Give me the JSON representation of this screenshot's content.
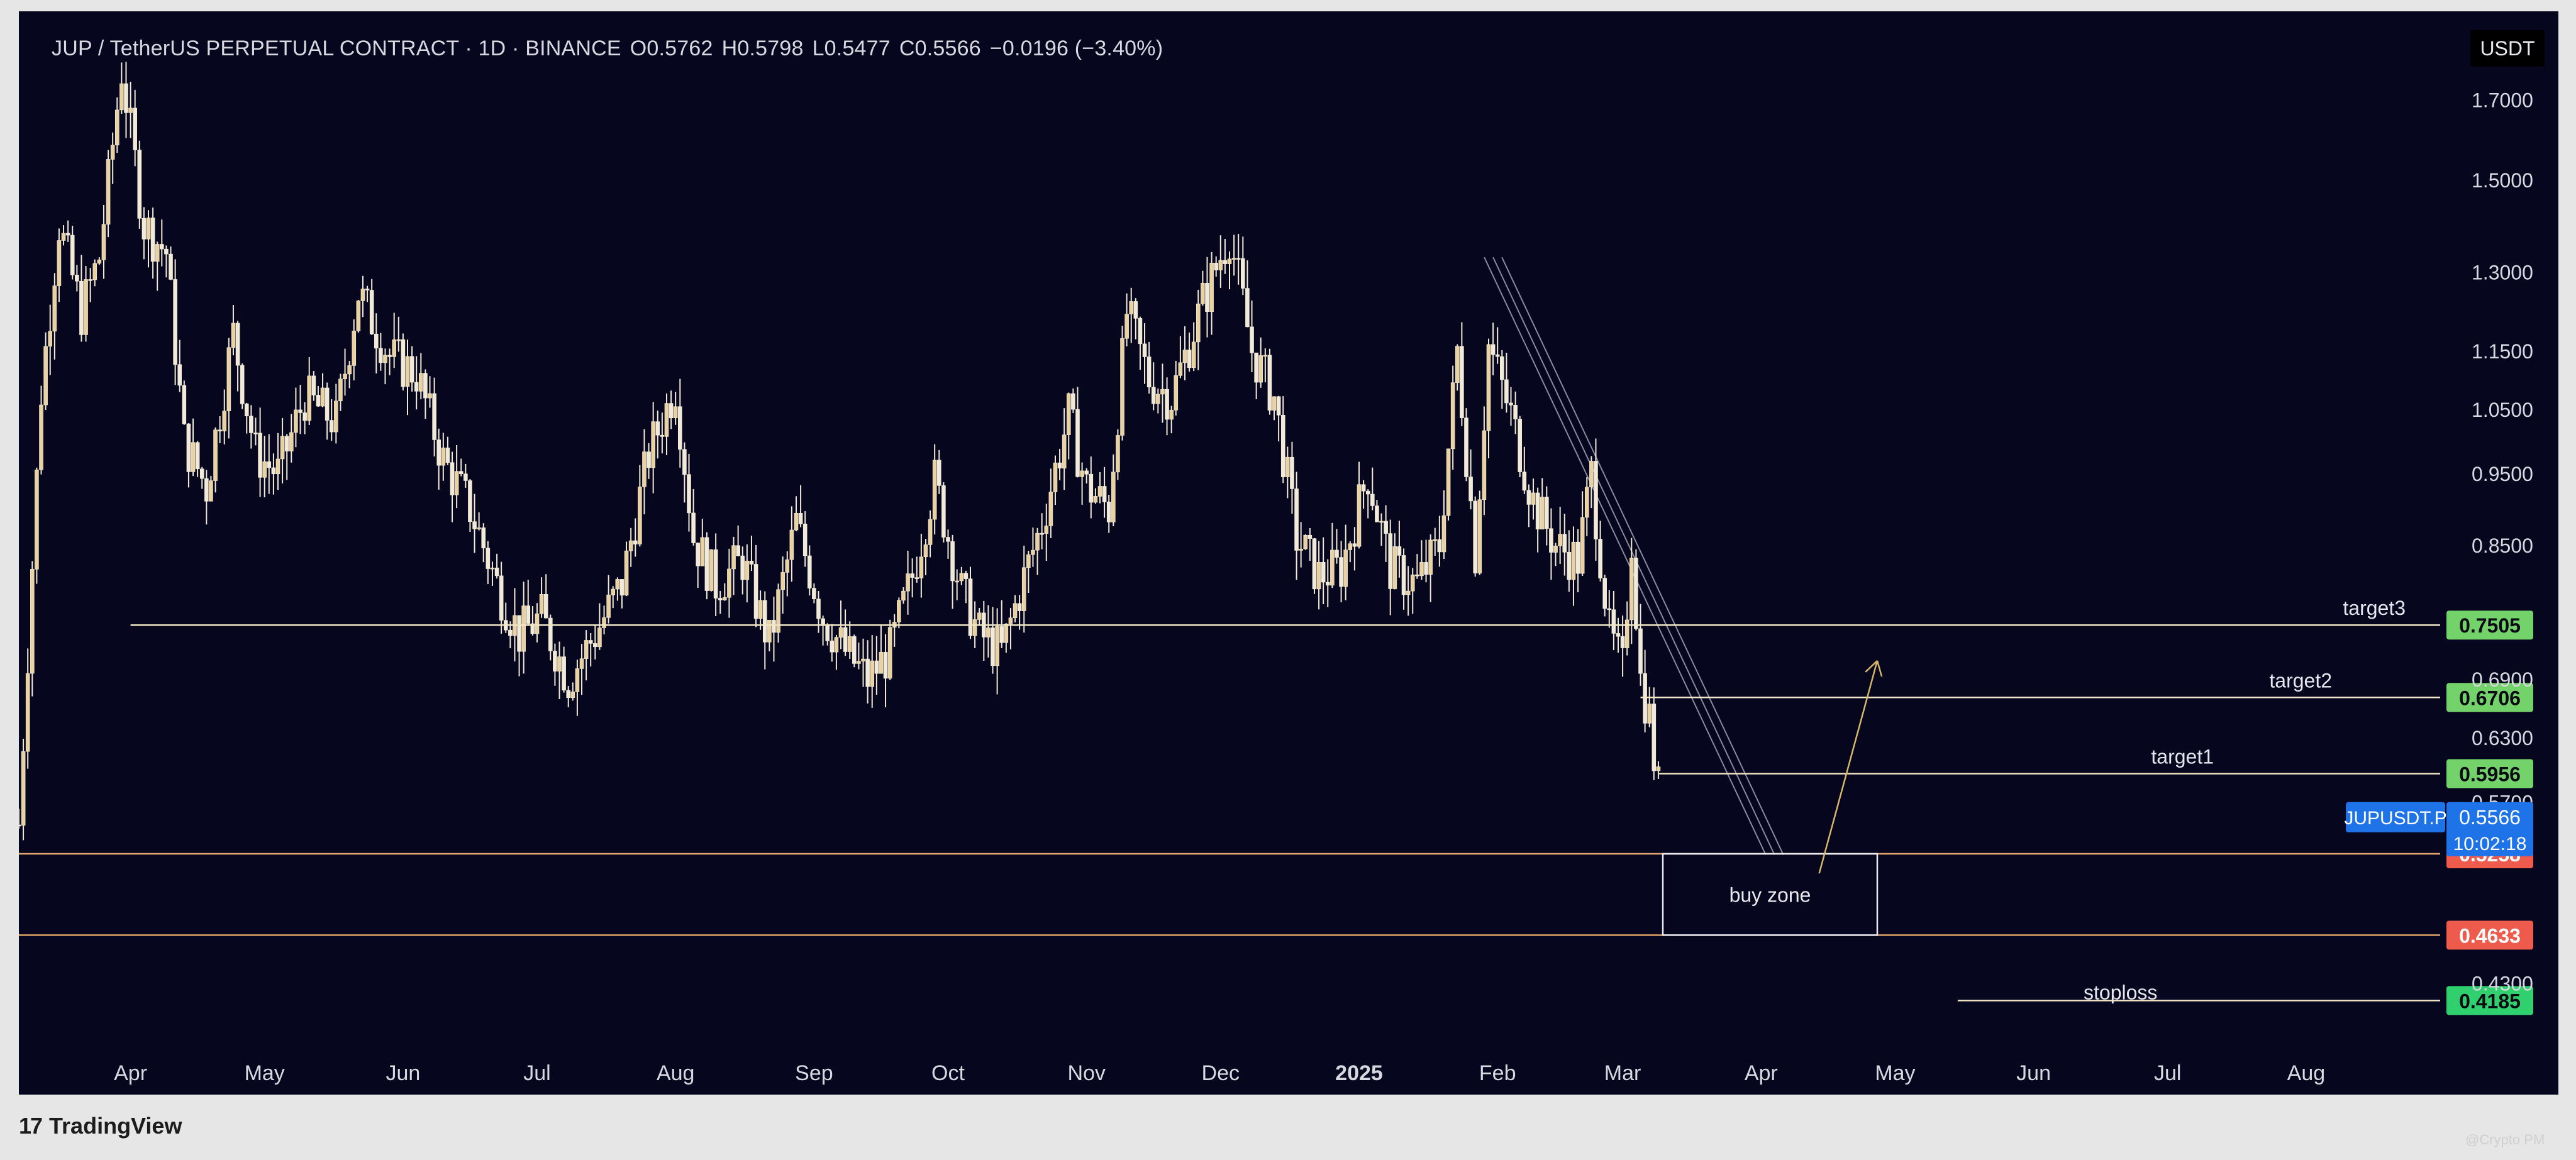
{
  "header": {
    "symbol": "JUP / TetherUS PERPETUAL CONTRACT · 1D · BINANCE",
    "open": "O0.5762",
    "high": "H0.5798",
    "low": "L0.5477",
    "close": "C0.5566",
    "change": "−0.0196 (−3.40%)"
  },
  "currency": "USDT",
  "footer": {
    "logo": "17",
    "brand": "TradingView",
    "watermark": "@Crypto PM"
  },
  "colors": {
    "background": "#06061f",
    "candle": "#e9d2a0",
    "candle_wick": "#f2ead8",
    "target_line": "#f0e6c4",
    "target_tag": "#74d26a",
    "zone_tag": "#ee5a4b",
    "stop_tag": "#2fd06d",
    "price_tag": "#1e73e8"
  },
  "chart_data": {
    "type": "candlestick",
    "title": "JUP / TetherUS PERPETUAL CONTRACT · 1D · BINANCE",
    "xlabel": "",
    "ylabel": "",
    "y_scale": "log",
    "ylim": [
      0.38,
      1.95
    ],
    "x_range": [
      "2024-03-07",
      "2025-08-31"
    ],
    "x_ticks": [
      {
        "date": "2024-04-01",
        "label": "Apr"
      },
      {
        "date": "2024-05-01",
        "label": "May"
      },
      {
        "date": "2024-06-01",
        "label": "Jun"
      },
      {
        "date": "2024-07-01",
        "label": "Jul"
      },
      {
        "date": "2024-08-01",
        "label": "Aug"
      },
      {
        "date": "2024-09-01",
        "label": "Sep"
      },
      {
        "date": "2024-10-01",
        "label": "Oct"
      },
      {
        "date": "2024-11-01",
        "label": "Nov"
      },
      {
        "date": "2024-12-01",
        "label": "Dec"
      },
      {
        "date": "2025-01-01",
        "label": "2025"
      },
      {
        "date": "2025-02-01",
        "label": "Feb"
      },
      {
        "date": "2025-03-01",
        "label": "Mar"
      },
      {
        "date": "2025-04-01",
        "label": "Apr"
      },
      {
        "date": "2025-05-01",
        "label": "May"
      },
      {
        "date": "2025-06-01",
        "label": "Jun"
      },
      {
        "date": "2025-07-01",
        "label": "Jul"
      },
      {
        "date": "2025-08-01",
        "label": "Aug"
      }
    ],
    "y_ticks": [
      "1.7000",
      "1.5000",
      "1.3000",
      "1.1500",
      "1.0500",
      "0.9500",
      "0.8500",
      "0.6900",
      "0.6300",
      "0.5700",
      "0.4300"
    ],
    "price_path": [
      {
        "date": "2024-03-07",
        "close": 0.55
      },
      {
        "date": "2024-03-12",
        "close": 1.08
      },
      {
        "date": "2024-03-16",
        "close": 1.4
      },
      {
        "date": "2024-03-21",
        "close": 1.22
      },
      {
        "date": "2024-03-25",
        "close": 1.33
      },
      {
        "date": "2024-03-30",
        "close": 1.78
      },
      {
        "date": "2024-04-04",
        "close": 1.4
      },
      {
        "date": "2024-04-09",
        "close": 1.34
      },
      {
        "date": "2024-04-13",
        "close": 1.0
      },
      {
        "date": "2024-04-18",
        "close": 0.93
      },
      {
        "date": "2024-04-24",
        "close": 1.18
      },
      {
        "date": "2024-04-29",
        "close": 0.98
      },
      {
        "date": "2024-05-04",
        "close": 0.95
      },
      {
        "date": "2024-05-10",
        "close": 1.07
      },
      {
        "date": "2024-05-17",
        "close": 1.03
      },
      {
        "date": "2024-05-22",
        "close": 1.26
      },
      {
        "date": "2024-05-29",
        "close": 1.14
      },
      {
        "date": "2024-06-04",
        "close": 1.11
      },
      {
        "date": "2024-06-10",
        "close": 0.97
      },
      {
        "date": "2024-06-16",
        "close": 0.9
      },
      {
        "date": "2024-06-22",
        "close": 0.8
      },
      {
        "date": "2024-06-27",
        "close": 0.74
      },
      {
        "date": "2024-07-02",
        "close": 0.76
      },
      {
        "date": "2024-07-08",
        "close": 0.69
      },
      {
        "date": "2024-07-14",
        "close": 0.74
      },
      {
        "date": "2024-07-20",
        "close": 0.8
      },
      {
        "date": "2024-07-26",
        "close": 0.98
      },
      {
        "date": "2024-08-01",
        "close": 1.09
      },
      {
        "date": "2024-08-05",
        "close": 0.86
      },
      {
        "date": "2024-08-10",
        "close": 0.8
      },
      {
        "date": "2024-08-16",
        "close": 0.83
      },
      {
        "date": "2024-08-22",
        "close": 0.73
      },
      {
        "date": "2024-08-28",
        "close": 0.88
      },
      {
        "date": "2024-09-03",
        "close": 0.76
      },
      {
        "date": "2024-09-08",
        "close": 0.72
      },
      {
        "date": "2024-09-13",
        "close": 0.69
      },
      {
        "date": "2024-09-18",
        "close": 0.72
      },
      {
        "date": "2024-09-23",
        "close": 0.81
      },
      {
        "date": "2024-09-28",
        "close": 0.94
      },
      {
        "date": "2024-10-04",
        "close": 0.79
      },
      {
        "date": "2024-10-08",
        "close": 0.74
      },
      {
        "date": "2024-10-13",
        "close": 0.72
      },
      {
        "date": "2024-10-17",
        "close": 0.79
      },
      {
        "date": "2024-10-22",
        "close": 0.88
      },
      {
        "date": "2024-10-28",
        "close": 1.04
      },
      {
        "date": "2024-11-01",
        "close": 0.93
      },
      {
        "date": "2024-11-06",
        "close": 0.9
      },
      {
        "date": "2024-11-10",
        "close": 1.22
      },
      {
        "date": "2024-11-15",
        "close": 1.1
      },
      {
        "date": "2024-11-20",
        "close": 1.07
      },
      {
        "date": "2024-11-27",
        "close": 1.24
      },
      {
        "date": "2024-12-03",
        "close": 1.38
      },
      {
        "date": "2024-12-08",
        "close": 1.15
      },
      {
        "date": "2024-12-13",
        "close": 1.07
      },
      {
        "date": "2024-12-18",
        "close": 0.86
      },
      {
        "date": "2024-12-23",
        "close": 0.81
      },
      {
        "date": "2024-12-28",
        "close": 0.82
      },
      {
        "date": "2025-01-03",
        "close": 0.95
      },
      {
        "date": "2025-01-08",
        "close": 0.82
      },
      {
        "date": "2025-01-14",
        "close": 0.8
      },
      {
        "date": "2025-01-19",
        "close": 0.85
      },
      {
        "date": "2025-01-23",
        "close": 1.15
      },
      {
        "date": "2025-01-27",
        "close": 0.84
      },
      {
        "date": "2025-01-30",
        "close": 1.16
      },
      {
        "date": "2025-02-04",
        "close": 1.04
      },
      {
        "date": "2025-02-09",
        "close": 0.91
      },
      {
        "date": "2025-02-14",
        "close": 0.85
      },
      {
        "date": "2025-02-19",
        "close": 0.83
      },
      {
        "date": "2025-02-22",
        "close": 0.95
      },
      {
        "date": "2025-02-26",
        "close": 0.74
      },
      {
        "date": "2025-03-01",
        "close": 0.7
      },
      {
        "date": "2025-03-03",
        "close": 0.86
      },
      {
        "date": "2025-03-05",
        "close": 0.69
      },
      {
        "date": "2025-03-07",
        "close": 0.65
      },
      {
        "date": "2025-03-08",
        "close": 0.61
      },
      {
        "date": "2025-03-10",
        "close": 0.5566
      }
    ],
    "horizontal_levels": [
      {
        "name": "target3",
        "value": 0.7505,
        "from": "2024-04-01",
        "tag": "0.7505"
      },
      {
        "name": "target2",
        "value": 0.6706,
        "from": "2025-03-05",
        "tag": "0.6706"
      },
      {
        "name": "target1",
        "value": 0.5956,
        "from": "2025-03-09",
        "tag": "0.5956"
      },
      {
        "name": "",
        "value": 0.5258,
        "from": "2024-03-07",
        "tag": "0.5258"
      },
      {
        "name": "",
        "value": 0.4633,
        "from": "2024-03-07",
        "tag": "0.4633"
      },
      {
        "name": "stoploss",
        "value": 0.4185,
        "from": "2025-05-15",
        "tag": "0.4185"
      }
    ],
    "last_price": {
      "symbol": "JUPUSDT.P",
      "value": "0.5566",
      "countdown": "10:02:18"
    },
    "buy_zone": {
      "label": "buy zone",
      "from": "2025-03-10",
      "to": "2025-04-27",
      "low": 0.4633,
      "high": 0.5258
    },
    "arrow": {
      "from_date": "2025-04-14",
      "from_value": 0.51,
      "to_date": "2025-04-27",
      "to_value": 0.71
    },
    "trendline": {
      "from_date": "2025-01-31",
      "from_value": 1.33,
      "to_date": "2025-04-04",
      "to_value": 0.525
    }
  }
}
